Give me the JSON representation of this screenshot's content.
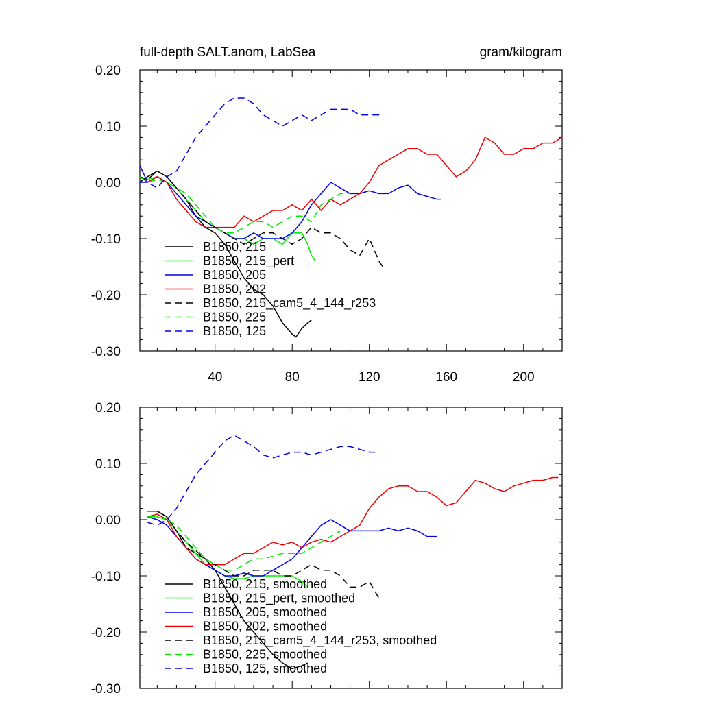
{
  "header": {
    "left_title": "full-depth SALT.anom, LabSea",
    "right_title": "gram/kilogram"
  },
  "chart_data": [
    {
      "type": "line",
      "title": "full-depth SALT.anom, LabSea",
      "units": "gram/kilogram",
      "xlim": [
        1,
        220
      ],
      "ylim": [
        -0.3,
        0.2
      ],
      "x_ticks": [
        40,
        80,
        120,
        160,
        200
      ],
      "x_tick_labels": [
        "40",
        "80",
        "120",
        "160",
        "200"
      ],
      "y_ticks": [
        0.2,
        0.1,
        0.0,
        -0.1,
        -0.2,
        -0.3
      ],
      "y_tick_labels": [
        "0.20",
        "0.10",
        "0.00",
        "-0.10",
        "-0.20",
        "-0.30"
      ],
      "grid": false,
      "legend_position": "bottom-left",
      "series": [
        {
          "name": "B1850, 215",
          "color": "#000000",
          "dash": "solid",
          "x": [
            1,
            5,
            10,
            15,
            20,
            25,
            30,
            35,
            40,
            45,
            50,
            55,
            60,
            65,
            70,
            75,
            80,
            82,
            85,
            88,
            90
          ],
          "y": [
            0.0,
            0.01,
            0.02,
            0.01,
            -0.01,
            -0.03,
            -0.06,
            -0.08,
            -0.09,
            -0.11,
            -0.14,
            -0.17,
            -0.19,
            -0.2,
            -0.22,
            -0.25,
            -0.27,
            -0.275,
            -0.26,
            -0.25,
            -0.245
          ]
        },
        {
          "name": "B1850, 215_pert",
          "color": "#00ee00",
          "dash": "solid",
          "x": [
            1,
            5,
            10,
            15,
            20,
            25,
            30,
            35,
            40,
            45,
            50,
            55,
            60,
            65,
            70,
            75,
            80,
            85,
            88,
            90,
            92
          ],
          "y": [
            0.01,
            0.005,
            0.01,
            0.0,
            -0.01,
            -0.03,
            -0.05,
            -0.07,
            -0.08,
            -0.09,
            -0.1,
            -0.1,
            -0.11,
            -0.1,
            -0.1,
            -0.11,
            -0.09,
            -0.09,
            -0.11,
            -0.13,
            -0.14
          ]
        },
        {
          "name": "B1850, 205",
          "color": "#0000ee",
          "dash": "solid",
          "x": [
            1,
            5,
            10,
            15,
            20,
            25,
            30,
            35,
            40,
            45,
            50,
            55,
            60,
            65,
            70,
            75,
            80,
            85,
            90,
            95,
            100,
            105,
            110,
            115,
            120,
            125,
            130,
            135,
            140,
            145,
            150,
            155,
            157
          ],
          "y": [
            0.03,
            0.0,
            0.01,
            0.0,
            -0.02,
            -0.04,
            -0.06,
            -0.07,
            -0.08,
            -0.09,
            -0.1,
            -0.1,
            -0.09,
            -0.1,
            -0.1,
            -0.1,
            -0.09,
            -0.07,
            -0.04,
            -0.02,
            0.0,
            -0.01,
            -0.02,
            -0.02,
            -0.015,
            -0.02,
            -0.02,
            -0.01,
            -0.005,
            -0.02,
            -0.025,
            -0.03,
            -0.03
          ]
        },
        {
          "name": "B1850, 202",
          "color": "#ee0000",
          "dash": "solid",
          "x": [
            1,
            5,
            10,
            15,
            20,
            25,
            30,
            35,
            40,
            45,
            50,
            55,
            60,
            65,
            70,
            75,
            80,
            85,
            90,
            95,
            100,
            105,
            110,
            115,
            120,
            125,
            130,
            135,
            140,
            145,
            150,
            155,
            160,
            165,
            170,
            175,
            180,
            185,
            190,
            195,
            200,
            205,
            210,
            215,
            220
          ],
          "y": [
            0.01,
            0.0,
            0.01,
            0.0,
            -0.03,
            -0.05,
            -0.07,
            -0.08,
            -0.08,
            -0.08,
            -0.08,
            -0.06,
            -0.07,
            -0.06,
            -0.05,
            -0.05,
            -0.04,
            -0.05,
            -0.03,
            -0.05,
            -0.03,
            -0.04,
            -0.03,
            -0.02,
            0.0,
            0.03,
            0.04,
            0.05,
            0.06,
            0.06,
            0.05,
            0.05,
            0.03,
            0.01,
            0.02,
            0.04,
            0.08,
            0.07,
            0.05,
            0.05,
            0.06,
            0.06,
            0.07,
            0.07,
            0.08
          ]
        },
        {
          "name": "B1850, 215_cam5_4_144_r253",
          "color": "#000000",
          "dash": "dashed",
          "x": [
            1,
            5,
            10,
            15,
            20,
            25,
            30,
            35,
            40,
            45,
            50,
            55,
            60,
            65,
            70,
            75,
            80,
            85,
            90,
            95,
            100,
            105,
            110,
            115,
            120,
            125,
            128
          ],
          "y": [
            0.01,
            0.005,
            0.02,
            0.01,
            -0.01,
            -0.03,
            -0.05,
            -0.07,
            -0.08,
            -0.09,
            -0.1,
            -0.11,
            -0.1,
            -0.09,
            -0.09,
            -0.1,
            -0.11,
            -0.1,
            -0.08,
            -0.09,
            -0.09,
            -0.1,
            -0.12,
            -0.13,
            -0.1,
            -0.14,
            -0.155
          ]
        },
        {
          "name": "B1850, 225",
          "color": "#00ee00",
          "dash": "dashed",
          "x": [
            1,
            5,
            10,
            15,
            20,
            25,
            30,
            35,
            40,
            45,
            50,
            55,
            60,
            65,
            70,
            75,
            80,
            85,
            90,
            95,
            100,
            105,
            110
          ],
          "y": [
            0.01,
            0.0,
            0.005,
            0.0,
            -0.01,
            -0.02,
            -0.04,
            -0.06,
            -0.08,
            -0.09,
            -0.09,
            -0.08,
            -0.07,
            -0.07,
            -0.08,
            -0.07,
            -0.06,
            -0.06,
            -0.07,
            -0.04,
            -0.03,
            -0.02,
            -0.02
          ]
        },
        {
          "name": "B1850, 125",
          "color": "#0000ee",
          "dash": "dashed",
          "x": [
            1,
            5,
            10,
            15,
            20,
            25,
            30,
            35,
            40,
            45,
            50,
            55,
            60,
            65,
            70,
            75,
            80,
            85,
            90,
            95,
            100,
            105,
            110,
            115,
            120,
            125,
            127
          ],
          "y": [
            0.0,
            0.0,
            -0.01,
            0.01,
            0.02,
            0.05,
            0.08,
            0.1,
            0.12,
            0.14,
            0.15,
            0.15,
            0.14,
            0.12,
            0.11,
            0.1,
            0.11,
            0.12,
            0.11,
            0.12,
            0.13,
            0.13,
            0.13,
            0.12,
            0.12,
            0.12,
            0.12
          ]
        }
      ]
    },
    {
      "type": "line",
      "xlim": [
        1,
        220
      ],
      "ylim": [
        -0.3,
        0.2
      ],
      "x_ticks": [
        40,
        80,
        120,
        160,
        200
      ],
      "y_ticks": [
        0.2,
        0.1,
        0.0,
        -0.1,
        -0.2,
        -0.3
      ],
      "y_tick_labels": [
        "0.20",
        "0.10",
        "0.00",
        "-0.10",
        "-0.20",
        "-0.30"
      ],
      "grid": false,
      "legend_position": "bottom-left",
      "series": [
        {
          "name": "B1850, 215, smoothed",
          "color": "#000000",
          "dash": "solid",
          "x": [
            5,
            10,
            15,
            20,
            25,
            30,
            35,
            40,
            45,
            50,
            55,
            60,
            65,
            70,
            75,
            80,
            85,
            88
          ],
          "y": [
            0.015,
            0.015,
            0.005,
            -0.02,
            -0.05,
            -0.06,
            -0.07,
            -0.09,
            -0.12,
            -0.15,
            -0.18,
            -0.2,
            -0.22,
            -0.24,
            -0.255,
            -0.265,
            -0.26,
            -0.255
          ]
        },
        {
          "name": "B1850, 215_pert, smoothed",
          "color": "#00ee00",
          "dash": "solid",
          "x": [
            5,
            10,
            15,
            20,
            25,
            30,
            35,
            40,
            45,
            50,
            55,
            60,
            65,
            70,
            75,
            80,
            85,
            88
          ],
          "y": [
            0.005,
            0.005,
            0.0,
            -0.02,
            -0.04,
            -0.06,
            -0.08,
            -0.09,
            -0.1,
            -0.105,
            -0.105,
            -0.1,
            -0.1,
            -0.1,
            -0.1,
            -0.1,
            -0.11,
            -0.12
          ]
        },
        {
          "name": "B1850, 205, smoothed",
          "color": "#0000ee",
          "dash": "solid",
          "x": [
            5,
            10,
            15,
            20,
            25,
            30,
            35,
            40,
            45,
            50,
            55,
            60,
            65,
            70,
            75,
            80,
            85,
            90,
            95,
            100,
            105,
            110,
            115,
            120,
            125,
            130,
            135,
            140,
            145,
            150,
            155
          ],
          "y": [
            0.005,
            0.0,
            -0.01,
            -0.03,
            -0.05,
            -0.07,
            -0.08,
            -0.09,
            -0.1,
            -0.1,
            -0.095,
            -0.1,
            -0.1,
            -0.09,
            -0.08,
            -0.07,
            -0.05,
            -0.03,
            -0.01,
            0.0,
            -0.01,
            -0.02,
            -0.02,
            -0.02,
            -0.02,
            -0.015,
            -0.02,
            -0.015,
            -0.02,
            -0.03,
            -0.03
          ]
        },
        {
          "name": "B1850, 202, smoothed",
          "color": "#ee0000",
          "dash": "solid",
          "x": [
            5,
            10,
            15,
            20,
            25,
            30,
            35,
            40,
            45,
            50,
            55,
            60,
            65,
            70,
            75,
            80,
            85,
            90,
            95,
            100,
            105,
            110,
            115,
            120,
            125,
            130,
            135,
            140,
            145,
            150,
            155,
            160,
            165,
            170,
            175,
            180,
            185,
            190,
            195,
            200,
            205,
            210,
            215,
            218
          ],
          "y": [
            0.005,
            0.01,
            0.0,
            -0.03,
            -0.05,
            -0.07,
            -0.08,
            -0.08,
            -0.08,
            -0.07,
            -0.06,
            -0.06,
            -0.05,
            -0.04,
            -0.045,
            -0.04,
            -0.05,
            -0.04,
            -0.035,
            -0.04,
            -0.03,
            -0.02,
            -0.01,
            0.02,
            0.04,
            0.055,
            0.06,
            0.06,
            0.05,
            0.05,
            0.04,
            0.025,
            0.03,
            0.05,
            0.07,
            0.065,
            0.055,
            0.05,
            0.06,
            0.065,
            0.07,
            0.07,
            0.075,
            0.075
          ]
        },
        {
          "name": "B1850, 215_cam5_4_144_r253, smoothed",
          "color": "#000000",
          "dash": "dashed",
          "x": [
            5,
            10,
            15,
            20,
            25,
            30,
            35,
            40,
            45,
            50,
            55,
            60,
            65,
            70,
            75,
            80,
            85,
            90,
            95,
            100,
            105,
            110,
            115,
            120,
            125
          ],
          "y": [
            0.015,
            0.015,
            0.005,
            -0.02,
            -0.04,
            -0.055,
            -0.07,
            -0.08,
            -0.09,
            -0.1,
            -0.1,
            -0.09,
            -0.09,
            -0.09,
            -0.1,
            -0.1,
            -0.09,
            -0.08,
            -0.09,
            -0.09,
            -0.1,
            -0.12,
            -0.12,
            -0.11,
            -0.14
          ]
        },
        {
          "name": "B1850, 225, smoothed",
          "color": "#00ee00",
          "dash": "dashed",
          "x": [
            5,
            10,
            15,
            20,
            25,
            30,
            35,
            40,
            45,
            50,
            55,
            60,
            65,
            70,
            75,
            80,
            85,
            90,
            95,
            100,
            105
          ],
          "y": [
            0.005,
            0.005,
            0.0,
            -0.01,
            -0.03,
            -0.05,
            -0.07,
            -0.08,
            -0.09,
            -0.09,
            -0.08,
            -0.07,
            -0.07,
            -0.065,
            -0.06,
            -0.06,
            -0.06,
            -0.05,
            -0.04,
            -0.03,
            -0.02
          ]
        },
        {
          "name": "B1850, 125, smoothed",
          "color": "#0000ee",
          "dash": "dashed",
          "x": [
            5,
            10,
            15,
            20,
            25,
            30,
            35,
            40,
            45,
            50,
            55,
            60,
            65,
            70,
            75,
            80,
            85,
            90,
            95,
            100,
            105,
            110,
            115,
            120,
            125
          ],
          "y": [
            -0.005,
            -0.01,
            0.0,
            0.02,
            0.05,
            0.08,
            0.1,
            0.12,
            0.14,
            0.15,
            0.14,
            0.13,
            0.115,
            0.11,
            0.115,
            0.12,
            0.12,
            0.115,
            0.12,
            0.125,
            0.13,
            0.13,
            0.125,
            0.12,
            0.12
          ]
        }
      ]
    }
  ]
}
